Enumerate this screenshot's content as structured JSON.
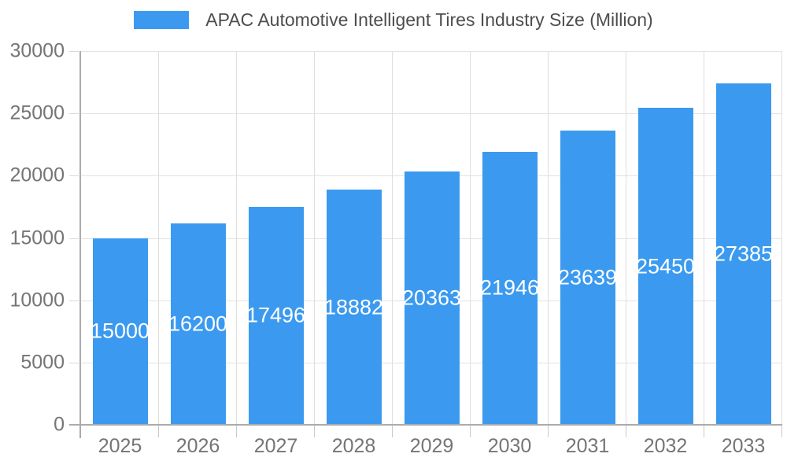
{
  "legend": {
    "label": "APAC Automotive Intelligent Tires Industry Size (Million)"
  },
  "chart_data": {
    "type": "bar",
    "title": "APAC Automotive Intelligent Tires Industry Size (Million)",
    "categories": [
      "2025",
      "2026",
      "2027",
      "2028",
      "2029",
      "2030",
      "2031",
      "2032",
      "2033"
    ],
    "series": [
      {
        "name": "APAC Automotive Intelligent Tires Industry Size (Million)",
        "values": [
          15000,
          16200,
          17496,
          18882,
          20363,
          21946,
          23639,
          25450,
          27385
        ]
      }
    ],
    "data_labels": [
      "15000",
      "16200",
      "17496",
      "18882",
      "20363",
      "21946",
      "23639",
      "25450",
      "27385"
    ],
    "xlabel": "",
    "ylabel": "",
    "ylim": [
      0,
      30000
    ],
    "y_ticks": [
      0,
      5000,
      10000,
      15000,
      20000,
      25000,
      30000
    ],
    "grid": true,
    "legend_position": "top"
  },
  "colors": {
    "bar": "#3B9AEF",
    "bar_label": "#FFFFFF",
    "gridline": "#E2E2E2",
    "axis_line": "#ABABAB",
    "tick_label": "#757575",
    "legend_text": "#4D4D4D",
    "background": "#FFFFFF"
  }
}
